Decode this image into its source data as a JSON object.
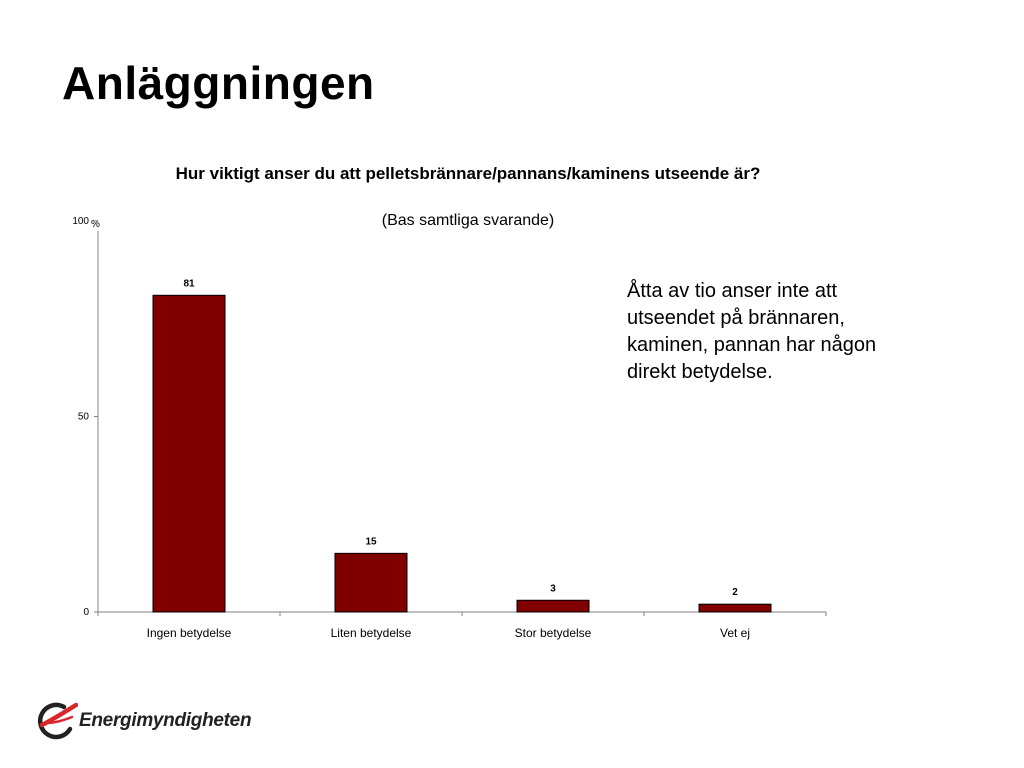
{
  "slide": {
    "title": "Anläggningen",
    "annotation": "Åtta av tio anser inte att utseendet på brännaren, kaminen, pannan har någon direkt betydelse.",
    "logo_text": "Energimyndigheten"
  },
  "colors": {
    "bar_fill": "#800000",
    "bar_stroke": "#000000",
    "axis": "#808080",
    "logo_red": "#d8262d"
  },
  "chart_data": {
    "type": "bar",
    "title": "Hur viktigt anser du att pelletsbrännare/pannans/kaminens utseende är?",
    "subtitle": "(Bas samtliga svarande)",
    "ylabel": "%",
    "xlabel": "",
    "categories": [
      "Ingen betydelse",
      "Liten betydelse",
      "Stor betydelse",
      "Vet ej"
    ],
    "values": [
      81,
      15,
      3,
      2
    ],
    "data_labels": [
      "81",
      "15",
      "3",
      "2"
    ],
    "y_ticks": [
      0,
      50,
      100
    ],
    "y_tick_labels": [
      "0",
      "50",
      "100"
    ],
    "ylim": [
      0,
      100
    ],
    "grid": false,
    "legend": "none"
  }
}
